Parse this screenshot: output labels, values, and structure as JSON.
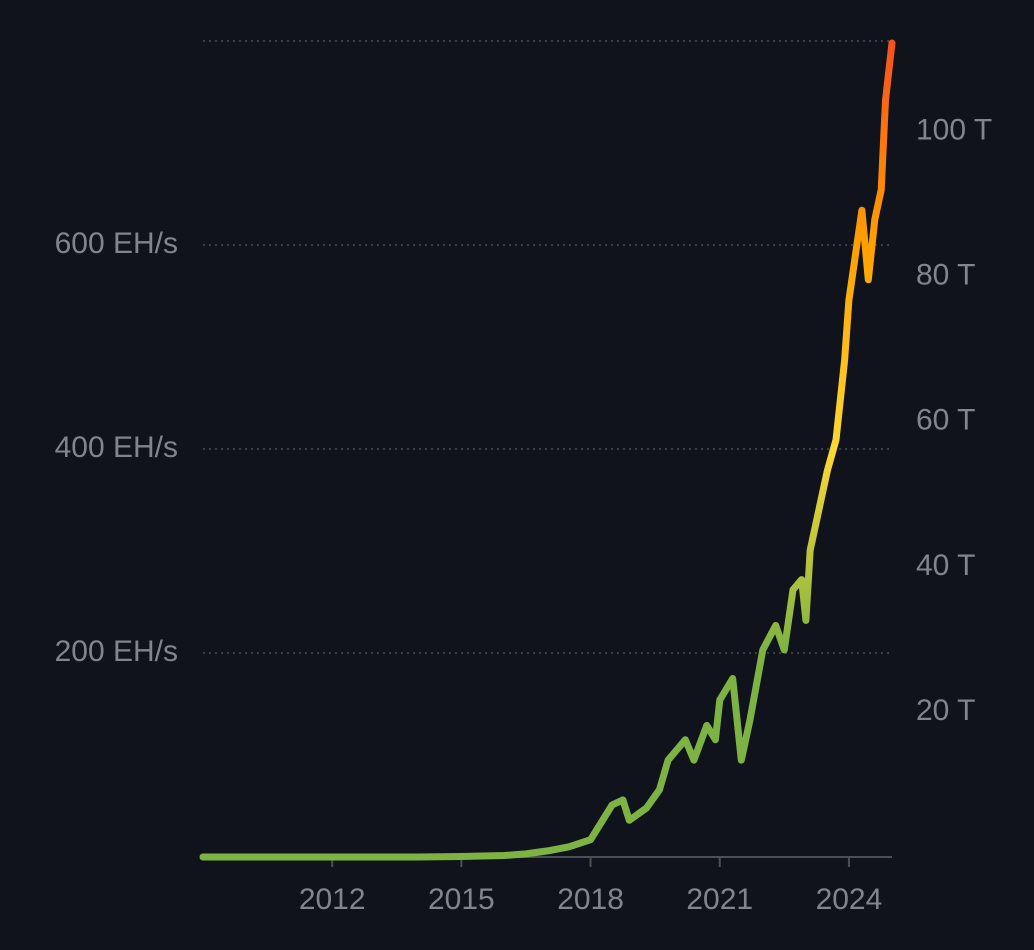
{
  "chart_data": {
    "type": "line",
    "x": [
      2009.0,
      2010,
      2011,
      2012,
      2013,
      2014,
      2015,
      2016,
      2016.5,
      2017.0,
      2017.5,
      2018.0,
      2018.5,
      2018.75,
      2018.9,
      2019.3,
      2019.6,
      2019.8,
      2020.2,
      2020.4,
      2020.7,
      2020.9,
      2021.0,
      2021.3,
      2021.5,
      2021.7,
      2022.0,
      2022.3,
      2022.5,
      2022.7,
      2022.9,
      2023.0,
      2023.1,
      2023.3,
      2023.5,
      2023.7,
      2023.9,
      2024.0,
      2024.2,
      2024.3,
      2024.45,
      2024.6,
      2024.75,
      2024.85,
      2025.0
    ],
    "series": [
      {
        "colors": [
          "#7cb342",
          "#7cb342",
          "#fdd835",
          "#ffa000",
          "#f4511e"
        ],
        "values": [
          0,
          0,
          0,
          0,
          0,
          0,
          0.5,
          1.5,
          3,
          6,
          10,
          17,
          51,
          56,
          36,
          48,
          66,
          95,
          115,
          95,
          129,
          115,
          154,
          175,
          95,
          134,
          203,
          227,
          203,
          262,
          272,
          232,
          301,
          340,
          379,
          409,
          487,
          546,
          605,
          634,
          566,
          625,
          654,
          742,
          798
        ]
      }
    ],
    "xlim": [
      2009,
      2025
    ],
    "xticks": [
      2012,
      2015,
      2018,
      2021,
      2024
    ],
    "ylim": [
      0,
      800
    ],
    "yticks": [
      {
        "value": 200,
        "label": "200 EH/s"
      },
      {
        "value": 400,
        "label": "400 EH/s"
      },
      {
        "value": 600,
        "label": "600 EH/s"
      }
    ],
    "y2lim": [
      0,
      112.5
    ],
    "y2ticks": [
      {
        "value": 20,
        "label": "20 T"
      },
      {
        "value": 40,
        "label": "40 T"
      },
      {
        "value": 60,
        "label": "60 T"
      },
      {
        "value": 80,
        "label": "80 T"
      },
      {
        "value": 100,
        "label": "100 T"
      }
    ],
    "grid": true
  }
}
